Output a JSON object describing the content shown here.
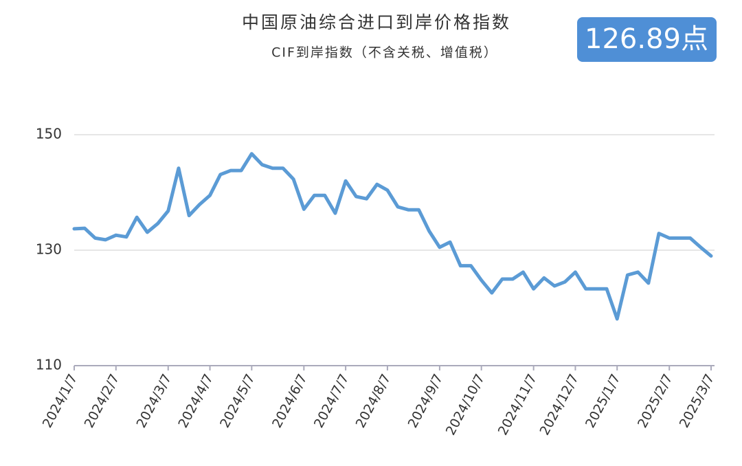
{
  "chart_data": {
    "type": "line",
    "title": "中国原油综合进口到岸价格指数",
    "subtitle": "CIF到岸指数（不含关税、增值税）",
    "annotation": "126.89点",
    "categories": [
      "2024/1/7",
      null,
      null,
      null,
      "2024/2/7",
      null,
      null,
      null,
      null,
      "2024/3/7",
      null,
      null,
      null,
      "2024/4/7",
      null,
      null,
      null,
      "2024/5/7",
      null,
      null,
      null,
      null,
      "2024/6/7",
      null,
      null,
      null,
      "2024/7/7",
      null,
      null,
      null,
      "2024/8/7",
      null,
      null,
      null,
      null,
      "2024/9/7",
      null,
      null,
      null,
      "2024/10/7",
      null,
      null,
      null,
      null,
      "2024/11/7",
      null,
      null,
      null,
      "2024/12/7",
      null,
      null,
      null,
      "2025/1/7",
      null,
      null,
      null,
      null,
      "2025/2/7",
      null,
      null,
      null,
      "2025/3/7"
    ],
    "series": [
      {
        "name": "CIF",
        "color": "#5b9bd5",
        "values": [
          133.7,
          133.8,
          132.1,
          131.8,
          132.6,
          132.3,
          135.7,
          133.1,
          134.6,
          136.8,
          144.2,
          136.0,
          137.9,
          139.5,
          143.1,
          143.8,
          143.8,
          146.7,
          144.8,
          144.2,
          144.2,
          142.3,
          137.1,
          139.5,
          139.5,
          136.4,
          142.0,
          139.3,
          138.9,
          141.4,
          140.4,
          137.5,
          137.0,
          137.0,
          133.3,
          130.5,
          131.4,
          127.3,
          127.3,
          124.8,
          122.6,
          125.0,
          125.0,
          126.2,
          123.3,
          125.2,
          123.8,
          124.5,
          126.2,
          123.3,
          123.3,
          123.3,
          118.1,
          125.7,
          126.2,
          124.3,
          132.9,
          132.1,
          132.1,
          132.1,
          130.5,
          129.0
        ]
      }
    ],
    "ylim": [
      110,
      150
    ],
    "yticks": [
      110,
      130,
      150
    ],
    "grid": true
  }
}
